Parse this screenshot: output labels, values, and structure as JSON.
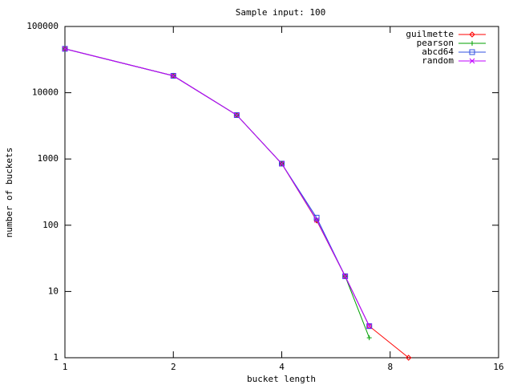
{
  "chart_data": {
    "type": "line",
    "title": "Sample input: 100",
    "x_label": "bucket length",
    "y_label": "number of buckets",
    "x_log_base": 2,
    "y_log_base": 10,
    "xlim": [
      1,
      16
    ],
    "xticks": [
      1,
      2,
      4,
      8,
      16
    ],
    "ylim": [
      1,
      100000
    ],
    "yticks": [
      1,
      10,
      100,
      1000,
      10000,
      100000
    ],
    "legend": "top-right",
    "series": [
      {
        "name": "guilmette",
        "color": "#ff0000",
        "marker": "diamond",
        "x": [
          1,
          2,
          3,
          4,
          5,
          6,
          7,
          9
        ],
        "values": [
          46000,
          18000,
          4600,
          850,
          118,
          17,
          3,
          1
        ]
      },
      {
        "name": "pearson",
        "color": "#00a000",
        "marker": "plus",
        "x": [
          1,
          2,
          3,
          4,
          5,
          6,
          7
        ],
        "values": [
          46000,
          18000,
          4600,
          850,
          120,
          17,
          2
        ]
      },
      {
        "name": "abcd64",
        "color": "#3050e0",
        "marker": "square",
        "x": [
          1,
          2,
          3,
          4,
          5,
          6,
          7
        ],
        "values": [
          46000,
          18000,
          4600,
          850,
          130,
          17,
          3
        ]
      },
      {
        "name": "random",
        "color": "#c000ff",
        "marker": "cross",
        "x": [
          1,
          2,
          3,
          4,
          5,
          6,
          7
        ],
        "values": [
          46000,
          18000,
          4600,
          850,
          120,
          17,
          3
        ]
      }
    ]
  }
}
